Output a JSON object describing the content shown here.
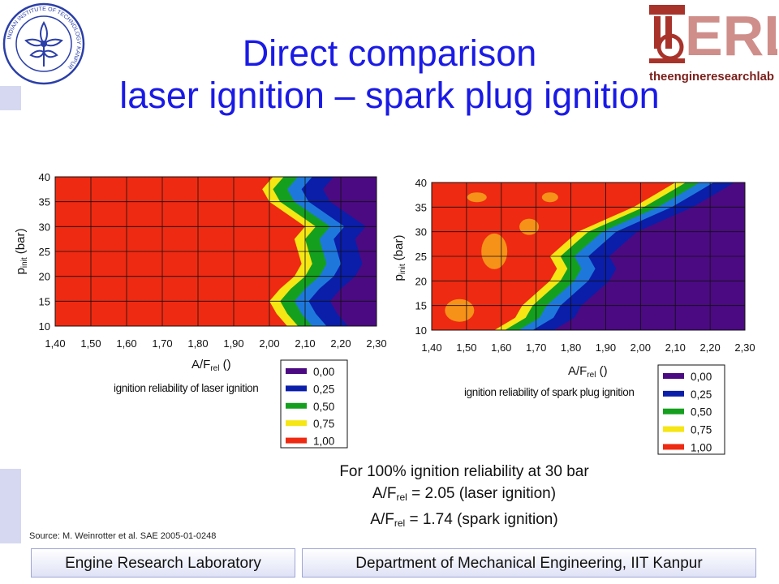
{
  "title": {
    "line1": "Direct comparison",
    "line2": "laser ignition – spark plug ignition"
  },
  "logos": {
    "iit_ring_text": "INDIAN INSTITUTE OF TECHNOLOGY KANPUR",
    "erl_letters": "ERL",
    "erl_tagline": "theengineresearchlab"
  },
  "colors": {
    "title": "#1a1ae6",
    "legend_000": "#4b0a82",
    "legend_025": "#0a1eaa",
    "legend_050": "#14a01e",
    "legend_075": "#f5e614",
    "legend_100": "#ee2a12",
    "background_red": "#ee2a12",
    "side_bar": "#d5d8f0"
  },
  "chart_data": [
    {
      "type": "heatmap",
      "title": "",
      "xlabel": "A/F",
      "xlabel_sub": "rel",
      "xlabel_suffix": " ()",
      "ylabel": "p",
      "ylabel_sub": "init",
      "ylabel_suffix": " (bar)",
      "x_ticks": [
        "1,40",
        "1,50",
        "1,60",
        "1,70",
        "1,80",
        "1,90",
        "2,00",
        "2,10",
        "2,20",
        "2,30"
      ],
      "y_ticks": [
        "10",
        "15",
        "20",
        "25",
        "30",
        "35",
        "40"
      ],
      "xlim": [
        1.4,
        2.3
      ],
      "ylim": [
        10,
        40
      ],
      "grid": true,
      "legend_title": "ignition reliability of laser ignition",
      "legend_levels": [
        "0,00",
        "0,25",
        "0,50",
        "0,75",
        "1,00"
      ],
      "level_values": [
        0,
        0.25,
        0.5,
        0.75,
        1
      ],
      "boundary_full_reliability_x": [
        2.05,
        2.02,
        2.0,
        2.03,
        2.07,
        2.09,
        2.08,
        2.07,
        2.1,
        2.05,
        2.0,
        1.98,
        2.01
      ]
    },
    {
      "type": "heatmap",
      "title": "",
      "xlabel": "A/F",
      "xlabel_sub": "rel",
      "xlabel_suffix": " ()",
      "ylabel": "p",
      "ylabel_sub": "init",
      "ylabel_suffix": " (bar)",
      "x_ticks": [
        "1,40",
        "1,50",
        "1,60",
        "1,70",
        "1,80",
        "1,90",
        "2,00",
        "2,10",
        "2,20",
        "2,30"
      ],
      "y_ticks": [
        "10",
        "15",
        "20",
        "25",
        "30",
        "35",
        "40"
      ],
      "xlim": [
        1.4,
        2.3
      ],
      "ylim": [
        10,
        40
      ],
      "grid": true,
      "legend_title": "ignition reliability of spark plug ignition",
      "legend_levels": [
        "0,00",
        "0,25",
        "0,50",
        "0,75",
        "1,00"
      ],
      "level_values": [
        0,
        0.25,
        0.5,
        0.75,
        1
      ],
      "boundary_full_reliability_x": [
        1.58,
        1.64,
        1.66,
        1.7,
        1.74,
        1.76,
        1.74,
        1.78,
        1.82,
        1.9,
        1.98,
        2.04,
        2.1
      ]
    }
  ],
  "summary": {
    "line1": "For 100% ignition reliability at 30 bar",
    "af": "A/F",
    "rel": "rel",
    "line2_rest": " = 2.05 (laser ignition)",
    "line3_rest": " = 1.74 (spark ignition)"
  },
  "source": "Source: M. Weinrotter et al. SAE 2005-01-0248",
  "footer": {
    "left": "Engine Research Laboratory",
    "right": "Department of Mechanical Engineering, IIT Kanpur"
  }
}
